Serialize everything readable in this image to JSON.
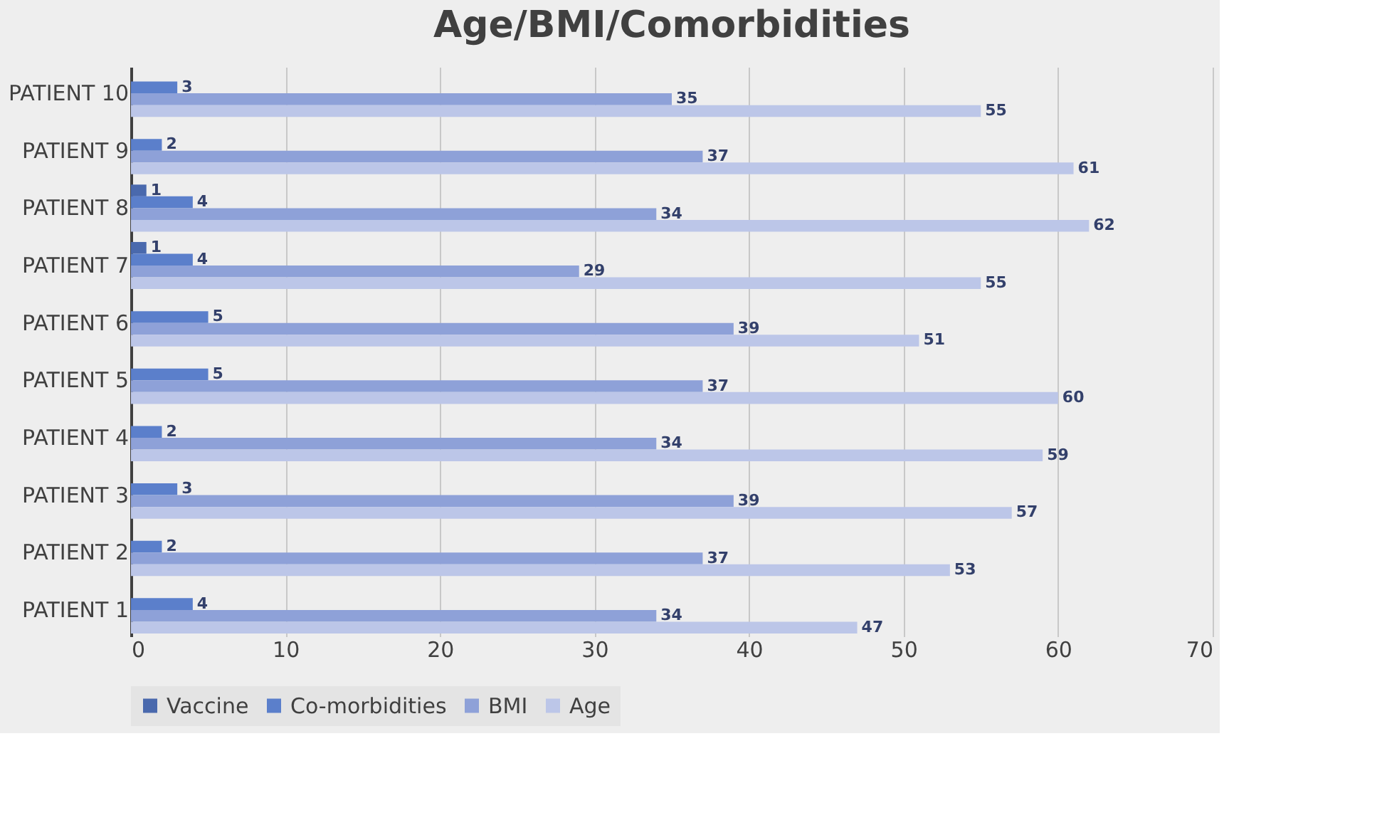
{
  "chart_data": {
    "type": "bar",
    "orientation": "horizontal",
    "title": "Age/BMI/Comorbidities",
    "categories": [
      "PATIENT 10",
      "PATIENT 9",
      "PATIENT 8",
      "PATIENT 7",
      "PATIENT 6",
      "PATIENT 5",
      "PATIENT 4",
      "PATIENT 3",
      "PATIENT 2",
      "PATIENT 1"
    ],
    "series": [
      {
        "name": "Vaccine",
        "color": "#4a69ad",
        "values": [
          null,
          null,
          1,
          1,
          null,
          null,
          null,
          null,
          null,
          null
        ]
      },
      {
        "name": "Co-morbidities",
        "color": "#5b7fcb",
        "values": [
          3,
          2,
          4,
          4,
          5,
          5,
          2,
          3,
          2,
          4
        ]
      },
      {
        "name": "BMI",
        "color": "#8ea1d8",
        "values": [
          35,
          37,
          34,
          29,
          39,
          37,
          34,
          39,
          37,
          34
        ]
      },
      {
        "name": "Age",
        "color": "#bcc6e8",
        "values": [
          55,
          61,
          62,
          55,
          51,
          60,
          59,
          57,
          53,
          47
        ]
      }
    ],
    "xlim": [
      0,
      70
    ],
    "xticks": [
      0,
      10,
      20,
      30,
      40,
      50,
      60,
      70
    ],
    "grid": "x",
    "legend": "bottom",
    "data_labels": true
  }
}
